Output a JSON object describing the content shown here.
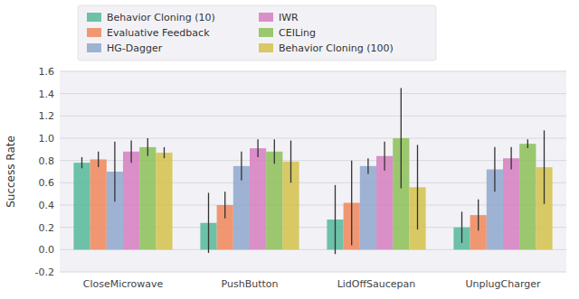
{
  "chart_data": {
    "type": "bar",
    "ylabel": "Success Rate",
    "categories": [
      "CloseMicrowave",
      "PushButton",
      "LidOffSaucepan",
      "UnplugCharger"
    ],
    "series": [
      {
        "name": "Behavior Cloning (10)",
        "color": "#55b899",
        "values": [
          0.78,
          0.24,
          0.27,
          0.2
        ],
        "errors": [
          0.05,
          0.27,
          0.31,
          0.14
        ]
      },
      {
        "name": "Evaluative Feedback",
        "color": "#f0875a",
        "values": [
          0.81,
          0.4,
          0.42,
          0.31
        ],
        "errors": [
          0.07,
          0.12,
          0.38,
          0.14
        ]
      },
      {
        "name": "HG-Dagger",
        "color": "#8fa8cc",
        "values": [
          0.7,
          0.75,
          0.75,
          0.72
        ],
        "errors": [
          0.27,
          0.13,
          0.07,
          0.2
        ]
      },
      {
        "name": "IWR",
        "color": "#d67ec0",
        "values": [
          0.88,
          0.91,
          0.84,
          0.82
        ],
        "errors": [
          0.1,
          0.08,
          0.13,
          0.1
        ]
      },
      {
        "name": "CEILing",
        "color": "#8cc057",
        "values": [
          0.92,
          0.88,
          1.0,
          0.95
        ],
        "errors": [
          0.08,
          0.11,
          0.45,
          0.04
        ]
      },
      {
        "name": "Behavior Cloning (100)",
        "color": "#d4c24a",
        "values": [
          0.87,
          0.79,
          0.56,
          0.74
        ],
        "errors": [
          0.05,
          0.19,
          0.38,
          0.33
        ]
      }
    ],
    "ylim": [
      -0.2,
      1.6
    ],
    "yticks": [
      -0.2,
      {
        "value": 0.0,
        "label": "0.0"
      },
      0.2,
      0.4,
      0.6,
      0.8,
      {
        "value": 1.0,
        "label": "1.0"
      },
      1.2,
      1.4,
      1.6
    ],
    "grid": true,
    "legend": "top"
  }
}
